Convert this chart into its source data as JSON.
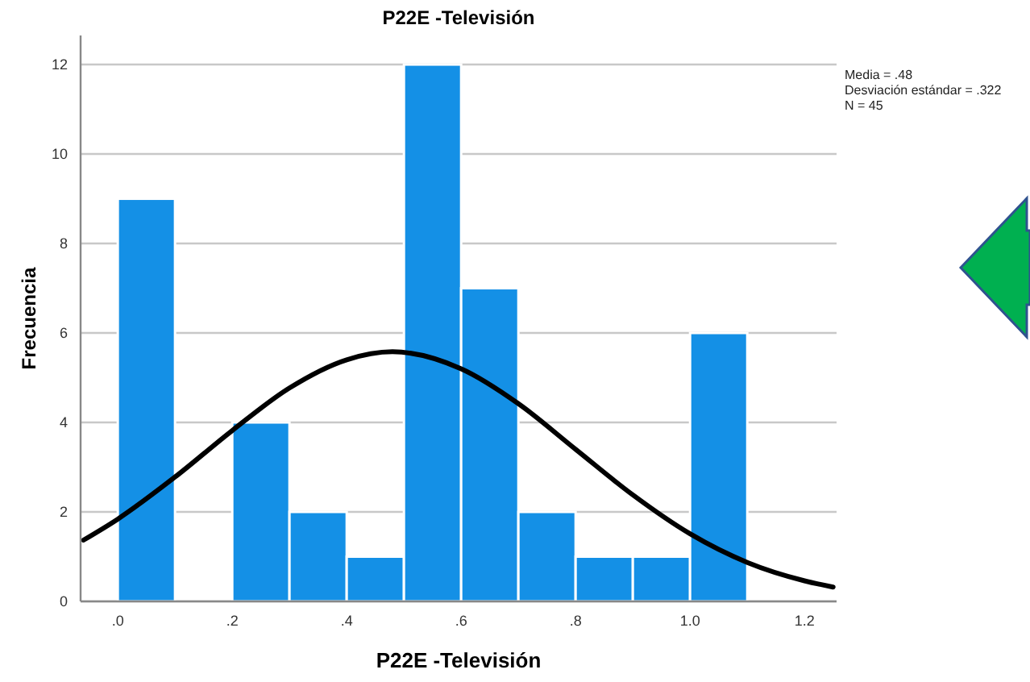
{
  "chart_data": {
    "type": "histogram",
    "title": "P22E -Televisión",
    "xlabel": "P22E -Televisión",
    "ylabel": "Frecuencia",
    "bins": [
      0,
      0.1,
      0.2,
      0.3,
      0.4,
      0.5,
      0.6,
      0.7,
      0.8,
      0.9,
      1.0,
      1.1
    ],
    "series": [
      {
        "color": "#1490e6",
        "values": [
          9,
          0,
          4,
          2,
          1,
          12,
          7,
          2,
          1,
          1,
          6
        ]
      },
      {
        "type": "line",
        "color": "#000000",
        "x": [
          -0.06,
          0,
          0.1,
          0.2,
          0.3,
          0.4,
          0.48,
          0.6,
          0.7,
          0.8,
          0.9,
          1.0,
          1.1,
          1.2,
          1.25
        ],
        "values": [
          1.37,
          1.84,
          2.78,
          3.82,
          4.77,
          5.4,
          5.58,
          5.2,
          4.42,
          3.4,
          2.38,
          1.51,
          0.87,
          0.46,
          0.32
        ]
      }
    ],
    "xlim": [
      -0.065,
      1.256
    ],
    "ylim": [
      0,
      12.65
    ],
    "xticks": [
      {
        "value": 0,
        "label": ".0"
      },
      {
        "value": 0.2,
        "label": ".2"
      },
      {
        "value": 0.4,
        "label": ".4"
      },
      {
        "value": 0.6,
        "label": ".6"
      },
      {
        "value": 0.8,
        "label": ".8"
      },
      {
        "value": 1.0,
        "label": "1.0"
      },
      {
        "value": 1.2,
        "label": "1.2"
      }
    ],
    "yticks": [
      0,
      2,
      4,
      6,
      8,
      10,
      12
    ],
    "grid": "y",
    "annotations": [
      "Media = .48",
      "Desviación estándar = .322",
      "N = 45"
    ]
  }
}
